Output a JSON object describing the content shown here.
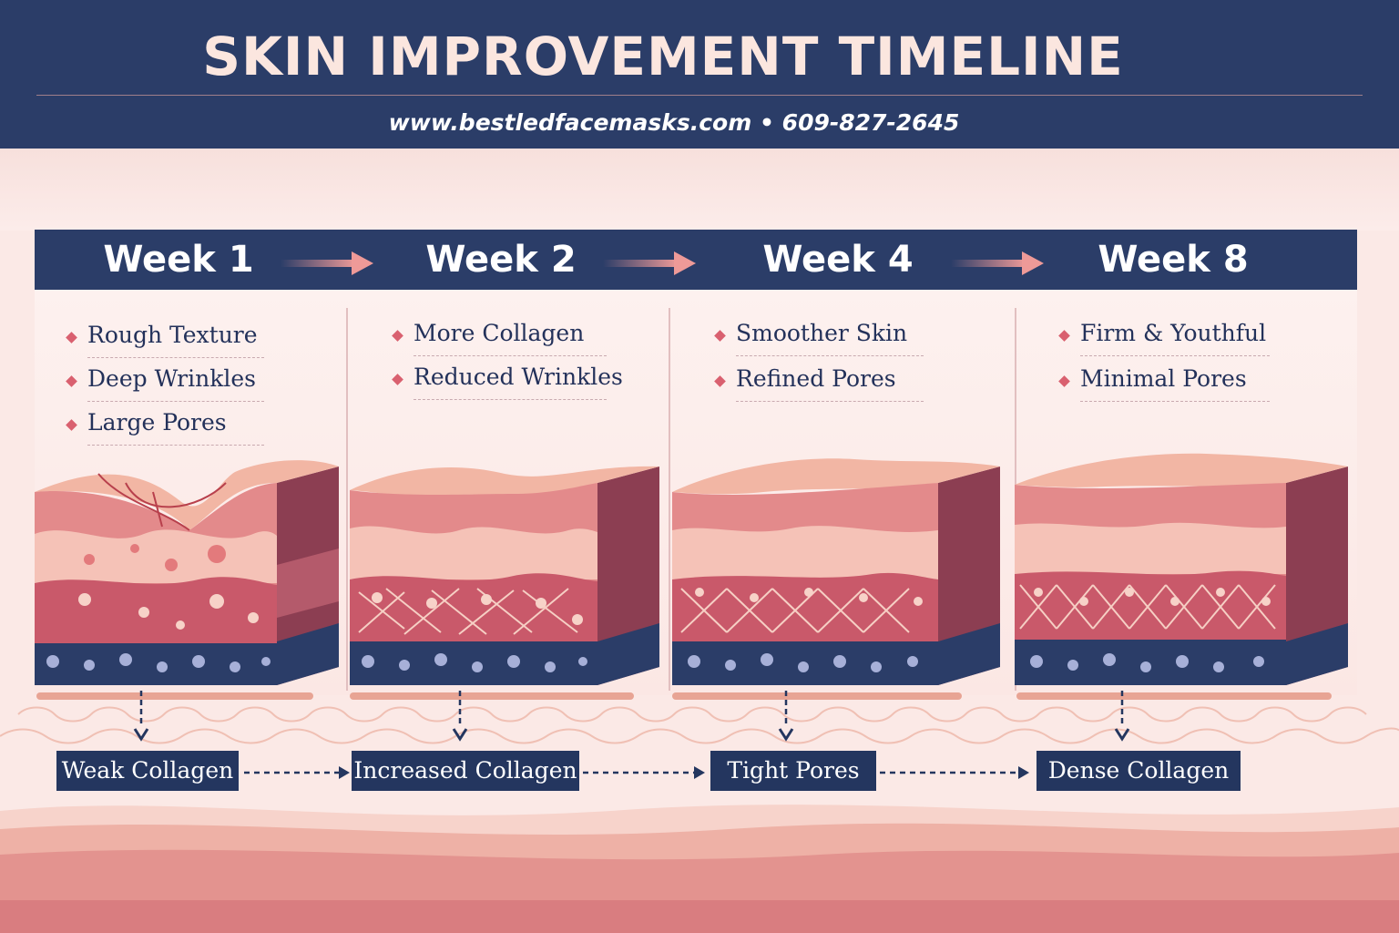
{
  "header": {
    "title": "SKIN IMPROVEMENT TIMELINE",
    "contact": "www.bestledfacemasks.com • 609-827-2645"
  },
  "weeks": [
    {
      "label": "Week 1",
      "items": [
        "Rough Texture",
        "Deep Wrinkles",
        "Large Pores"
      ],
      "collagen_label": "Weak Collagen"
    },
    {
      "label": "Week 2",
      "items": [
        "More Collagen",
        "Reduced Wrinkles"
      ],
      "collagen_label": "Increased Collagen"
    },
    {
      "label": "Week 4",
      "items": [
        "Smoother Skin",
        "Refined Pores"
      ],
      "collagen_label": "Tight Pores"
    },
    {
      "label": "Week 8",
      "items": [
        "Firm & Youthful",
        "Minimal Pores"
      ],
      "collagen_label": "Dense Collagen"
    }
  ],
  "colors": {
    "navy": "#2b3d68",
    "blush": "#fbe9e6",
    "accent_pink": "#d9606f",
    "arrow_pink": "#ee9a98"
  },
  "icons": {
    "week_connector": "arrow-right-icon",
    "bullet": "diamond-bullet-icon",
    "down": "arrow-down-icon",
    "dashed_connector": "dashed-arrow-right-icon"
  }
}
